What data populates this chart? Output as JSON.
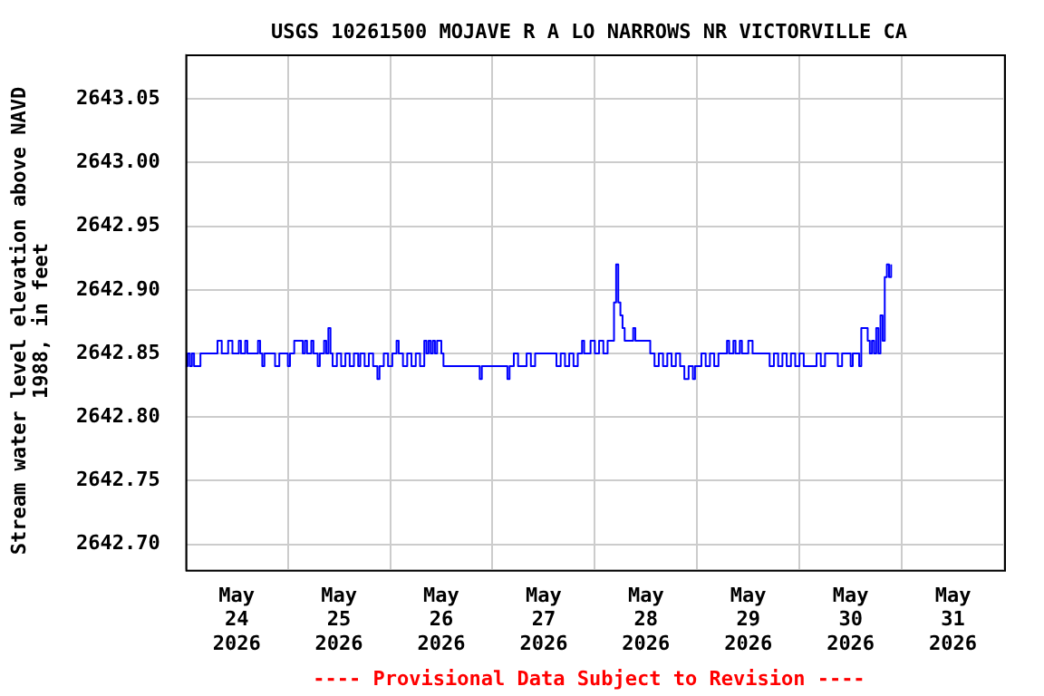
{
  "chart_data": {
    "type": "step",
    "title": "USGS 10261500 MOJAVE R A LO NARROWS NR VICTORVILLE CA",
    "ylabel": "Stream water level elevation above NAVD 1988, in feet",
    "annotations": [
      "---- Provisional Data Subject to Revision ----"
    ],
    "xlim": [
      "2026-05-24",
      "2026-06-01"
    ],
    "xticks": [
      {
        "value": "2026-05-24",
        "label": null
      },
      {
        "value": "2026-05-24T12:00",
        "label": "May 24 2026"
      },
      {
        "value": "2026-05-25",
        "label": null
      },
      {
        "value": "2026-05-25T12:00",
        "label": "May 25 2026"
      },
      {
        "value": "2026-05-26",
        "label": null
      },
      {
        "value": "2026-05-26T12:00",
        "label": "May 26 2026"
      },
      {
        "value": "2026-05-27",
        "label": null
      },
      {
        "value": "2026-05-27T12:00",
        "label": "May 27 2026"
      },
      {
        "value": "2026-05-28",
        "label": null
      },
      {
        "value": "2026-05-28T12:00",
        "label": "May 28 2026"
      },
      {
        "value": "2026-05-29",
        "label": null
      },
      {
        "value": "2026-05-29T12:00",
        "label": "May 29 2026"
      },
      {
        "value": "2026-05-30",
        "label": null
      },
      {
        "value": "2026-05-30T12:00",
        "label": "May 30 2026"
      },
      {
        "value": "2026-05-31",
        "label": null
      },
      {
        "value": "2026-05-31T12:00",
        "label": "May 31 2026"
      },
      {
        "value": "2026-06-01",
        "label": null
      }
    ],
    "ylim": [
      2642.68,
      2643.085
    ],
    "yticks": [
      {
        "value": 2642.7,
        "label": "2642.70"
      },
      {
        "value": 2642.75,
        "label": "2642.75"
      },
      {
        "value": 2642.8,
        "label": "2642.80"
      },
      {
        "value": 2642.85,
        "label": "2642.85"
      },
      {
        "value": 2642.9,
        "label": "2642.90"
      },
      {
        "value": 2642.95,
        "label": "2642.95"
      },
      {
        "value": 2643.0,
        "label": "2643.00"
      },
      {
        "value": 2643.05,
        "label": "2643.05"
      }
    ],
    "grid": true,
    "legend": false,
    "marker": "none",
    "line_style": "solid",
    "series": [
      {
        "color": "#0000ff",
        "x": [
          "2026-05-24T00:00",
          "2026-05-24T00:30",
          "2026-05-24T01:00",
          "2026-05-24T01:30",
          "2026-05-24T02:00",
          "2026-05-24T03:30",
          "2026-05-24T07:30",
          "2026-05-24T08:30",
          "2026-05-24T10:00",
          "2026-05-24T11:00",
          "2026-05-24T12:30",
          "2026-05-24T13:00",
          "2026-05-24T14:00",
          "2026-05-24T14:30",
          "2026-05-24T17:00",
          "2026-05-24T17:30",
          "2026-05-24T18:00",
          "2026-05-24T18:30",
          "2026-05-24T21:00",
          "2026-05-24T22:00",
          "2026-05-25T00:00",
          "2026-05-25T00:30",
          "2026-05-25T01:30",
          "2026-05-25T03:30",
          "2026-05-25T04:00",
          "2026-05-25T04:30",
          "2026-05-25T05:30",
          "2026-05-25T06:00",
          "2026-05-25T07:00",
          "2026-05-25T07:30",
          "2026-05-25T08:30",
          "2026-05-25T09:00",
          "2026-05-25T09:30",
          "2026-05-25T10:00",
          "2026-05-25T10:30",
          "2026-05-25T11:30",
          "2026-05-25T12:30",
          "2026-05-25T13:30",
          "2026-05-25T14:30",
          "2026-05-25T15:30",
          "2026-05-25T16:30",
          "2026-05-25T17:00",
          "2026-05-25T18:00",
          "2026-05-25T19:00",
          "2026-05-25T20:00",
          "2026-05-25T21:00",
          "2026-05-25T21:30",
          "2026-05-25T22:30",
          "2026-05-25T23:30",
          "2026-05-26T00:30",
          "2026-05-26T01:30",
          "2026-05-26T02:00",
          "2026-05-26T03:00",
          "2026-05-26T04:00",
          "2026-05-26T05:00",
          "2026-05-26T06:00",
          "2026-05-26T07:00",
          "2026-05-26T08:00",
          "2026-05-26T08:30",
          "2026-05-26T09:00",
          "2026-05-26T09:30",
          "2026-05-26T10:00",
          "2026-05-26T10:30",
          "2026-05-26T11:00",
          "2026-05-26T12:00",
          "2026-05-26T12:30",
          "2026-05-26T21:00",
          "2026-05-26T21:30",
          "2026-05-27T03:30",
          "2026-05-27T04:00",
          "2026-05-27T05:00",
          "2026-05-27T06:00",
          "2026-05-27T08:00",
          "2026-05-27T09:00",
          "2026-05-27T10:00",
          "2026-05-27T15:00",
          "2026-05-27T16:00",
          "2026-05-27T17:00",
          "2026-05-27T18:00",
          "2026-05-27T19:00",
          "2026-05-27T20:00",
          "2026-05-27T21:00",
          "2026-05-27T21:30",
          "2026-05-27T23:00",
          "2026-05-28T00:00",
          "2026-05-28T01:00",
          "2026-05-28T02:00",
          "2026-05-28T03:00",
          "2026-05-28T04:30",
          "2026-05-28T05:00",
          "2026-05-28T05:30",
          "2026-05-28T06:00",
          "2026-05-28T06:30",
          "2026-05-28T07:00",
          "2026-05-28T09:00",
          "2026-05-28T09:30",
          "2026-05-28T13:00",
          "2026-05-28T14:00",
          "2026-05-28T15:00",
          "2026-05-28T16:00",
          "2026-05-28T17:00",
          "2026-05-28T18:00",
          "2026-05-28T19:00",
          "2026-05-28T20:00",
          "2026-05-28T21:00",
          "2026-05-28T22:00",
          "2026-05-28T23:00",
          "2026-05-28T23:30",
          "2026-05-29T01:00",
          "2026-05-29T02:00",
          "2026-05-29T03:00",
          "2026-05-29T04:00",
          "2026-05-29T05:00",
          "2026-05-29T07:00",
          "2026-05-29T07:30",
          "2026-05-29T08:30",
          "2026-05-29T09:00",
          "2026-05-29T10:00",
          "2026-05-29T10:30",
          "2026-05-29T12:00",
          "2026-05-29T13:00",
          "2026-05-29T17:00",
          "2026-05-29T18:00",
          "2026-05-29T19:00",
          "2026-05-29T20:00",
          "2026-05-29T21:00",
          "2026-05-29T22:00",
          "2026-05-29T23:00",
          "2026-05-30T00:00",
          "2026-05-30T01:00",
          "2026-05-30T04:00",
          "2026-05-30T05:00",
          "2026-05-30T06:00",
          "2026-05-30T09:00",
          "2026-05-30T10:00",
          "2026-05-30T12:00",
          "2026-05-30T12:30",
          "2026-05-30T14:00",
          "2026-05-30T14:30",
          "2026-05-30T16:00",
          "2026-05-30T16:30",
          "2026-05-30T17:00",
          "2026-05-30T17:30",
          "2026-05-30T18:00",
          "2026-05-30T18:30",
          "2026-05-30T19:00",
          "2026-05-30T19:30",
          "2026-05-30T20:00",
          "2026-05-30T20:30",
          "2026-05-30T21:00",
          "2026-05-30T21:30"
        ],
        "values": [
          2642.84,
          2642.85,
          2642.84,
          2642.85,
          2642.84,
          2642.85,
          2642.86,
          2642.85,
          2642.86,
          2642.85,
          2642.86,
          2642.85,
          2642.86,
          2642.85,
          2642.86,
          2642.85,
          2642.84,
          2642.85,
          2642.84,
          2642.85,
          2642.84,
          2642.85,
          2642.86,
          2642.85,
          2642.86,
          2642.85,
          2642.86,
          2642.85,
          2642.84,
          2642.85,
          2642.86,
          2642.85,
          2642.87,
          2642.85,
          2642.84,
          2642.85,
          2642.84,
          2642.85,
          2642.84,
          2642.85,
          2642.84,
          2642.85,
          2642.84,
          2642.85,
          2642.84,
          2642.83,
          2642.84,
          2642.85,
          2642.84,
          2642.85,
          2642.86,
          2642.85,
          2642.84,
          2642.85,
          2642.84,
          2642.85,
          2642.84,
          2642.86,
          2642.85,
          2642.86,
          2642.85,
          2642.86,
          2642.85,
          2642.86,
          2642.85,
          2642.84,
          2642.83,
          2642.84,
          2642.83,
          2642.84,
          2642.85,
          2642.84,
          2642.85,
          2642.84,
          2642.85,
          2642.84,
          2642.85,
          2642.84,
          2642.85,
          2642.84,
          2642.85,
          2642.86,
          2642.85,
          2642.86,
          2642.85,
          2642.86,
          2642.85,
          2642.86,
          2642.89,
          2642.92,
          2642.89,
          2642.88,
          2642.87,
          2642.86,
          2642.87,
          2642.86,
          2642.85,
          2642.84,
          2642.85,
          2642.84,
          2642.85,
          2642.84,
          2642.85,
          2642.84,
          2642.83,
          2642.84,
          2642.83,
          2642.84,
          2642.85,
          2642.84,
          2642.85,
          2642.84,
          2642.85,
          2642.86,
          2642.85,
          2642.86,
          2642.85,
          2642.86,
          2642.85,
          2642.86,
          2642.85,
          2642.84,
          2642.85,
          2642.84,
          2642.85,
          2642.84,
          2642.85,
          2642.84,
          2642.85,
          2642.84,
          2642.85,
          2642.84,
          2642.85,
          2642.84,
          2642.85,
          2642.84,
          2642.85,
          2642.84,
          2642.87,
          2642.86,
          2642.85,
          2642.86,
          2642.85,
          2642.87,
          2642.85,
          2642.88,
          2642.86,
          2642.91,
          2642.92,
          2642.91,
          2642.92
        ]
      }
    ]
  }
}
